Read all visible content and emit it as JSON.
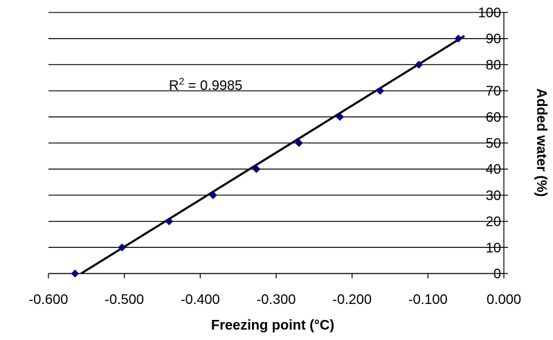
{
  "chart_data": {
    "type": "scatter",
    "title": "",
    "xlabel": "Freezing point (°C)",
    "ylabel": "Added water (%)",
    "xlim": [
      -0.6,
      0.0
    ],
    "ylim": [
      0,
      100
    ],
    "x_ticks": [
      "-0.600",
      "-0.500",
      "-0.400",
      "-0.300",
      "-0.200",
      "-0.100",
      "0.000"
    ],
    "y_ticks": [
      "0",
      "10",
      "20",
      "30",
      "40",
      "50",
      "60",
      "70",
      "80",
      "90",
      "100"
    ],
    "y_axis_side": "right",
    "grid": "horizontal",
    "legend": "none",
    "marker": "diamond",
    "marker_color": "#000080",
    "trendline_color": "#000000",
    "series": [
      {
        "x": [
          -0.565,
          -0.503,
          -0.441,
          -0.383,
          -0.326,
          -0.27,
          -0.216,
          -0.163,
          -0.112,
          -0.06
        ],
        "y": [
          0,
          10,
          20,
          30,
          40,
          50,
          60,
          70,
          80,
          90
        ]
      }
    ],
    "trendline": {
      "x": [
        -0.557,
        -0.052
      ],
      "y": [
        0,
        91
      ]
    },
    "annotation": {
      "text": "R",
      "superscript": "2",
      "value_text": " = 0.9985"
    }
  }
}
